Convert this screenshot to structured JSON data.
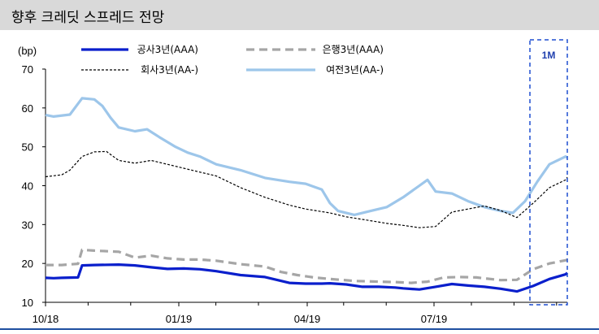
{
  "header": {
    "title": "향후 크레딧 스프레드 전망"
  },
  "chart_data": {
    "type": "line",
    "title": "향후 크레딧 스프레드 전망",
    "ylabel": "(bp)",
    "ylim": [
      10,
      70
    ],
    "yticks": [
      "10",
      "20",
      "30",
      "40",
      "50",
      "60",
      "70"
    ],
    "xticks": [
      "10/18",
      "01/19",
      "04/19",
      "07/19"
    ],
    "x_range": [
      "2018-10",
      "2019-11"
    ],
    "grid": false,
    "legend_position": "top",
    "annotation": {
      "label": "1M",
      "style": "dashed-box",
      "color": "#1f4fd0"
    },
    "series": [
      {
        "name": "공사3년(AAA)",
        "color": "#0a1fcc",
        "style": "solid-thick",
        "x": [
          0,
          10,
          20,
          40,
          45,
          60,
          90,
          110,
          130,
          150,
          170,
          190,
          210,
          240,
          270,
          290,
          300,
          320,
          340,
          350,
          370,
          390,
          410,
          430,
          440,
          460,
          480,
          500,
          520,
          540,
          560,
          580,
          600,
          620,
          640,
          642
        ],
        "y": [
          16.3,
          16.2,
          16.3,
          16.4,
          19.5,
          19.6,
          19.7,
          19.5,
          19.0,
          18.6,
          18.7,
          18.5,
          18.0,
          17.0,
          16.5,
          15.5,
          15.0,
          14.8,
          14.8,
          14.9,
          14.6,
          14.0,
          14.0,
          13.8,
          13.6,
          13.3,
          14.0,
          14.7,
          14.3,
          14.0,
          13.5,
          12.8,
          14.2,
          16.0,
          17.2,
          17.6
        ]
      },
      {
        "name": "은행3년(AAA)",
        "color": "#a6a6a6",
        "style": "dashed-thick",
        "x": [
          0,
          20,
          40,
          45,
          60,
          90,
          110,
          130,
          150,
          170,
          190,
          210,
          240,
          270,
          290,
          310,
          330,
          350,
          380,
          410,
          430,
          450,
          470,
          490,
          510,
          530,
          560,
          580,
          600,
          620,
          640,
          642
        ],
        "y": [
          19.6,
          19.6,
          19.9,
          23.5,
          23.3,
          23.0,
          21.5,
          22.0,
          21.3,
          21.0,
          21.0,
          20.7,
          19.8,
          19.2,
          17.8,
          17.0,
          16.4,
          16.0,
          15.5,
          15.3,
          15.2,
          15.0,
          15.3,
          16.4,
          16.5,
          16.4,
          15.7,
          15.8,
          18.5,
          20.0,
          20.8,
          21.0
        ]
      },
      {
        "name": "회사3년(AA-)",
        "color": "#000000",
        "style": "dotted",
        "x": [
          0,
          20,
          30,
          45,
          60,
          75,
          90,
          110,
          130,
          150,
          170,
          190,
          210,
          240,
          270,
          300,
          320,
          350,
          370,
          400,
          420,
          440,
          460,
          480,
          500,
          520,
          540,
          560,
          580,
          600,
          620,
          640,
          642
        ],
        "y": [
          42.3,
          42.8,
          44.0,
          47.5,
          48.7,
          48.8,
          46.5,
          45.8,
          46.5,
          45.5,
          44.5,
          43.5,
          42.5,
          39.5,
          37.0,
          35.0,
          34.0,
          33.0,
          32.0,
          31.0,
          30.3,
          29.8,
          29.2,
          29.5,
          33.2,
          34.0,
          34.8,
          33.6,
          31.8,
          35.5,
          39.5,
          41.5,
          42.2
        ]
      },
      {
        "name": "여전3년(AA-)",
        "color": "#9dc6ea",
        "style": "solid-thick",
        "x": [
          0,
          10,
          30,
          45,
          60,
          70,
          80,
          90,
          110,
          125,
          140,
          160,
          175,
          190,
          210,
          240,
          270,
          300,
          320,
          340,
          350,
          360,
          380,
          400,
          420,
          440,
          460,
          470,
          480,
          500,
          520,
          540,
          560,
          575,
          590,
          605,
          620,
          640,
          642
        ],
        "y": [
          58.2,
          57.8,
          58.3,
          62.5,
          62.2,
          60.5,
          57.5,
          55.0,
          54.0,
          54.5,
          52.5,
          50.0,
          48.5,
          47.5,
          45.5,
          44.0,
          42.0,
          41.0,
          40.5,
          39.0,
          35.5,
          33.5,
          32.5,
          33.5,
          34.5,
          37.0,
          40.0,
          41.5,
          38.5,
          38.0,
          36.0,
          34.5,
          33.5,
          33.0,
          36.0,
          41.0,
          45.5,
          47.5,
          47.2
        ]
      }
    ]
  }
}
